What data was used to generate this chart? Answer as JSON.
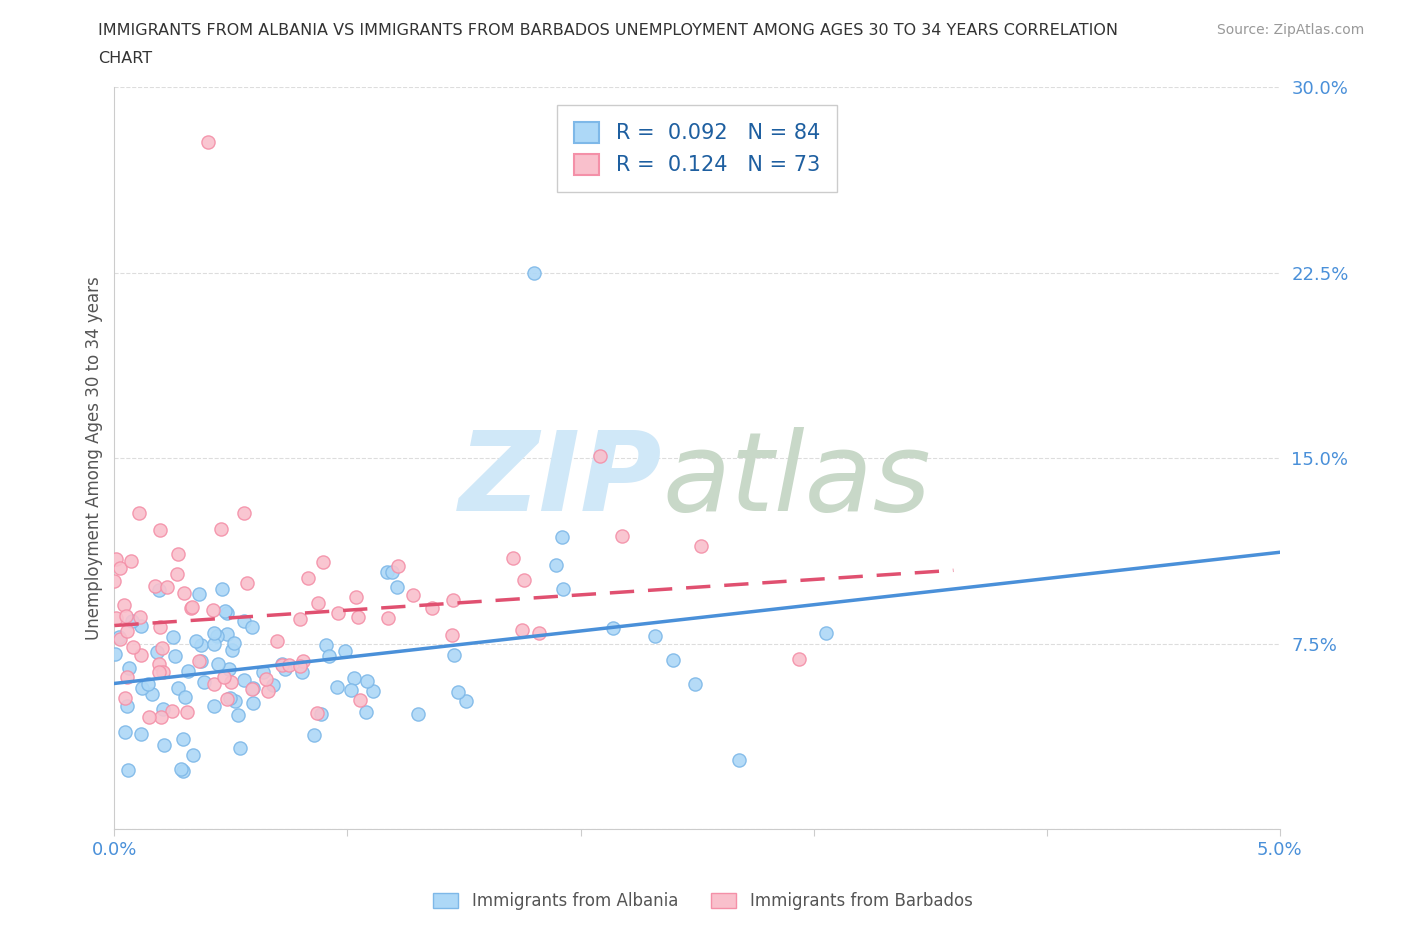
{
  "title_line1": "IMMIGRANTS FROM ALBANIA VS IMMIGRANTS FROM BARBADOS UNEMPLOYMENT AMONG AGES 30 TO 34 YEARS CORRELATION",
  "title_line2": "CHART",
  "source": "Source: ZipAtlas.com",
  "ylabel": "Unemployment Among Ages 30 to 34 years",
  "xlabel_albania": "Immigrants from Albania",
  "xlabel_barbados": "Immigrants from Barbados",
  "xlim": [
    0.0,
    0.05
  ],
  "ylim": [
    0.0,
    0.3
  ],
  "ytick_vals": [
    0.0,
    0.075,
    0.15,
    0.225,
    0.3
  ],
  "ytick_labels": [
    "",
    "7.5%",
    "15.0%",
    "22.5%",
    "30.0%"
  ],
  "xtick_vals": [
    0.0,
    0.01,
    0.02,
    0.03,
    0.04,
    0.05
  ],
  "xtick_labels": [
    "0.0%",
    "",
    "",
    "",
    "",
    "5.0%"
  ],
  "albania_R": 0.092,
  "albania_N": 84,
  "barbados_R": 0.124,
  "barbados_N": 73,
  "albania_color": "#ADD8F7",
  "barbados_color": "#F9C0CC",
  "albania_edge_color": "#7EB8E8",
  "barbados_edge_color": "#F490A8",
  "albania_line_color": "#4A90D9",
  "barbados_line_color": "#E05070",
  "tick_label_color": "#4A90D9",
  "legend_text_color": "#1E5FA0",
  "watermark_color": "#D0E8F8",
  "watermark_color2": "#C8D8C8",
  "background_color": "#FFFFFF",
  "grid_color": "#DDDDDD",
  "title_color": "#333333",
  "source_color": "#999999",
  "ylabel_color": "#555555"
}
